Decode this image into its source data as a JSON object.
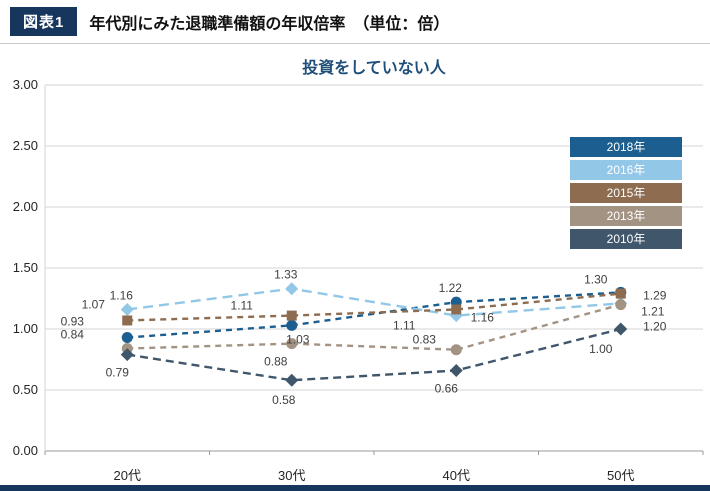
{
  "header": {
    "badge": "図表1",
    "title": "年代別にみた退職準備額の年収倍率　（単位：倍）"
  },
  "colors": {
    "badge_bg": "#17365d",
    "header_rule": "#c8c8c8",
    "chart_title": "#1f4e79",
    "grid": "#d6d6d6",
    "axis": "#999999",
    "axis_text": "#262626",
    "data_label_text": "#404040",
    "bottom_bar": "#17365d"
  },
  "chart_data": {
    "type": "line",
    "title": "投資をしていない人",
    "categories": [
      "20代",
      "30代",
      "40代",
      "50代"
    ],
    "series": [
      {
        "name": "2018年",
        "color": "#1b5e8f",
        "marker": "circle",
        "dash": "6 5",
        "values": [
          0.93,
          1.03,
          1.22,
          1.3
        ]
      },
      {
        "name": "2016年",
        "color": "#93c7e8",
        "marker": "diamond",
        "dash": "10 6",
        "values": [
          1.16,
          1.33,
          1.11,
          1.21
        ]
      },
      {
        "name": "2015年",
        "color": "#8d6c50",
        "marker": "square",
        "dash": "6 5",
        "values": [
          1.07,
          1.11,
          1.16,
          1.29
        ]
      },
      {
        "name": "2013年",
        "color": "#a39382",
        "marker": "circle",
        "dash": "6 5",
        "values": [
          0.84,
          0.88,
          0.83,
          1.2
        ]
      },
      {
        "name": "2010年",
        "color": "#3f566b",
        "marker": "diamond",
        "dash": "8 5",
        "values": [
          0.79,
          0.58,
          0.66,
          1.0
        ]
      }
    ],
    "ylim": [
      0,
      3.0
    ],
    "ytick_step": 0.5,
    "ytick_labels": [
      "0.00",
      "0.50",
      "1.00",
      "1.50",
      "2.00",
      "2.50",
      "3.00"
    ],
    "grid": true,
    "legend_position": "right",
    "line_style": "dashed"
  }
}
